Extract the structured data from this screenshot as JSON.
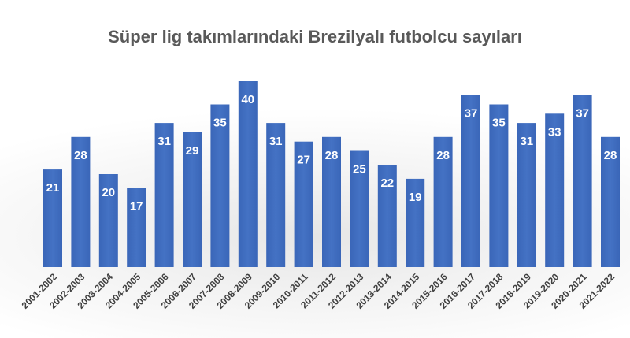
{
  "chart_data": {
    "type": "bar",
    "title": "Süper lig takımlarındaki Brezilyalı futbolcu sayıları",
    "xlabel": "",
    "ylabel": "",
    "categories": [
      "2001-2002",
      "2002-2003",
      "2003-2004",
      "2004-2005",
      "2005-2006",
      "2006-2007",
      "2007-2008",
      "2008-2009",
      "2009-2010",
      "2010-2011",
      "2011-2012",
      "2012-2013",
      "2013-2014",
      "2014-2015",
      "2015-2016",
      "2016-2017",
      "2017-2018",
      "2018-2019",
      "2019-2020",
      "2020-2021",
      "2021-2022"
    ],
    "values": [
      21,
      28,
      20,
      17,
      31,
      29,
      35,
      40,
      31,
      27,
      28,
      25,
      22,
      19,
      28,
      37,
      35,
      31,
      33,
      37,
      28
    ],
    "ylim": [
      0,
      40
    ],
    "grid": false,
    "legend": "none",
    "bar_color": "#4472C4",
    "data_labels": true
  }
}
